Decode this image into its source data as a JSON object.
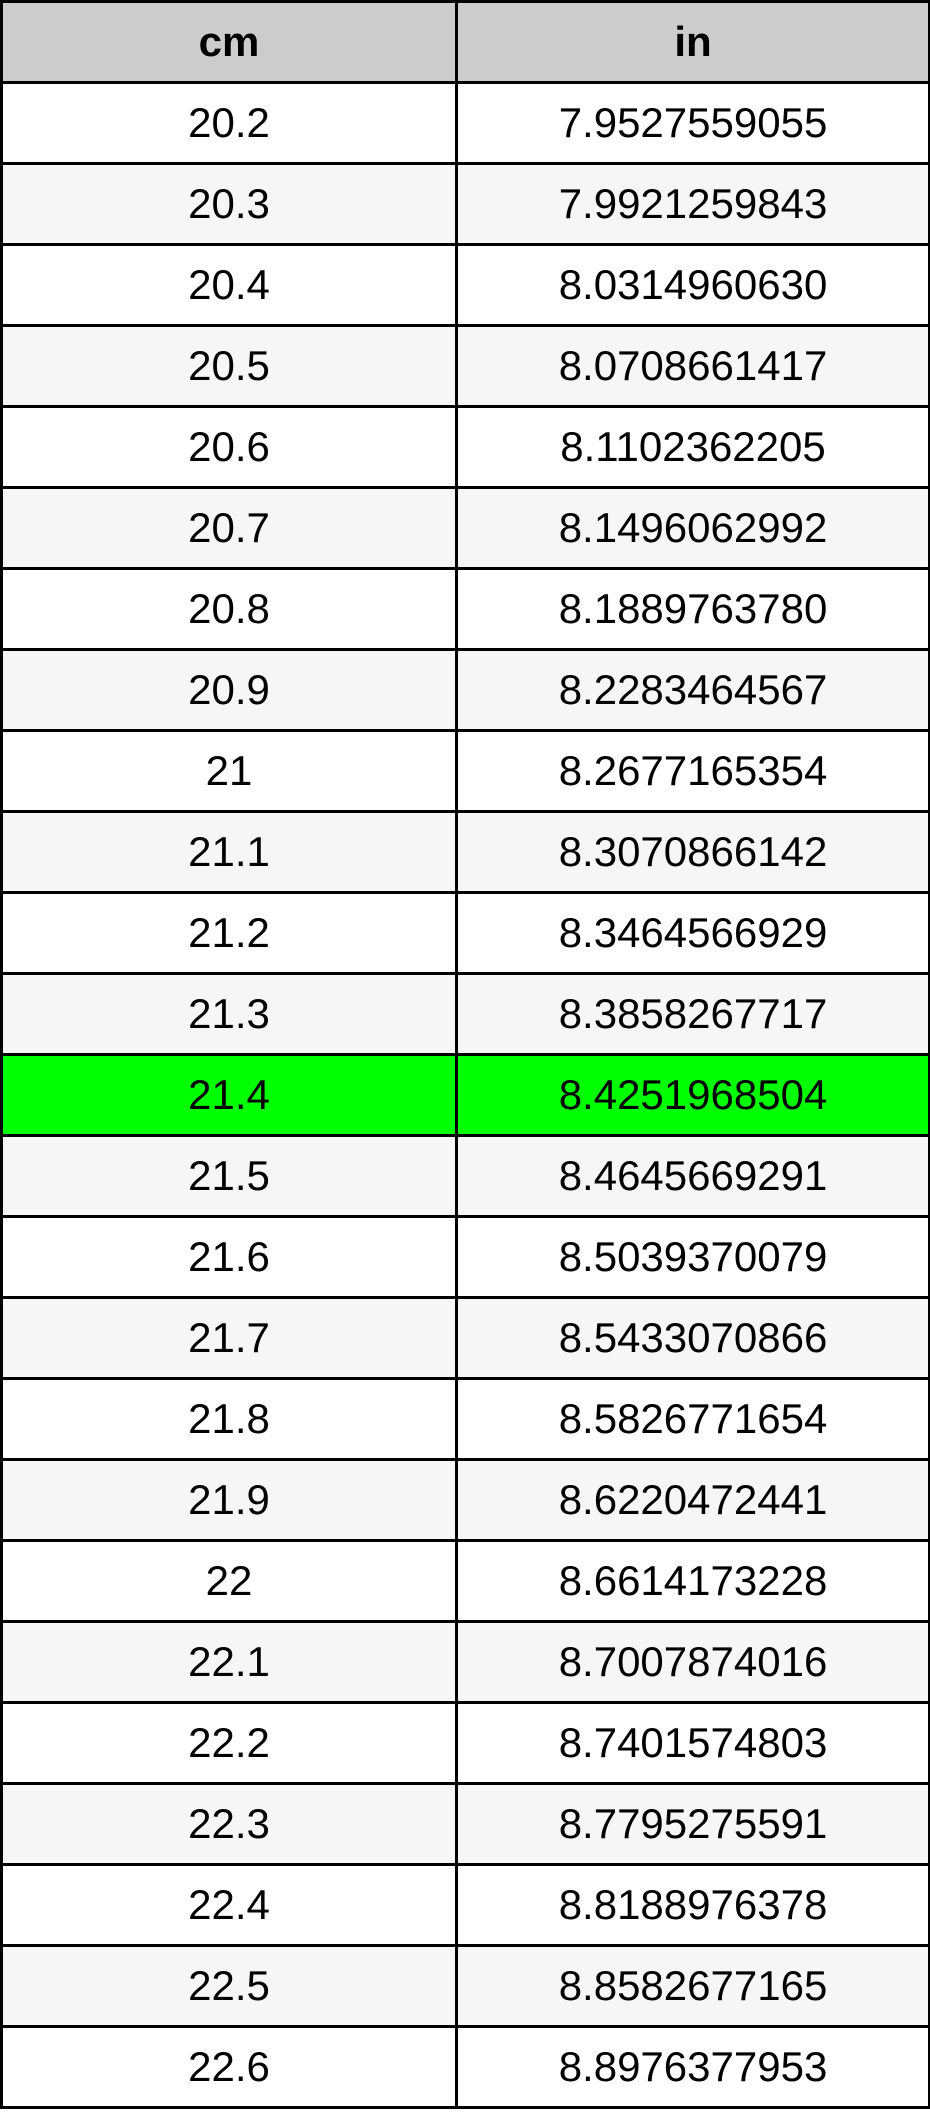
{
  "page": {
    "description": "Centimeters to inches conversion table with row 21.4 cm highlighted"
  },
  "colors": {
    "header_bg": "#cccccc",
    "alt_row_bg": "#f6f6f6",
    "highlight_bg": "#00ff00",
    "border": "#000000",
    "text": "#000000"
  },
  "chart_data": {
    "type": "table",
    "columns": [
      "cm",
      "in"
    ],
    "rows": [
      [
        "20.2",
        "7.9527559055"
      ],
      [
        "20.3",
        "7.9921259843"
      ],
      [
        "20.4",
        "8.0314960630"
      ],
      [
        "20.5",
        "8.0708661417"
      ],
      [
        "20.6",
        "8.1102362205"
      ],
      [
        "20.7",
        "8.1496062992"
      ],
      [
        "20.8",
        "8.1889763780"
      ],
      [
        "20.9",
        "8.2283464567"
      ],
      [
        "21",
        "8.2677165354"
      ],
      [
        "21.1",
        "8.3070866142"
      ],
      [
        "21.2",
        "8.3464566929"
      ],
      [
        "21.3",
        "8.3858267717"
      ],
      [
        "21.4",
        "8.4251968504"
      ],
      [
        "21.5",
        "8.4645669291"
      ],
      [
        "21.6",
        "8.5039370079"
      ],
      [
        "21.7",
        "8.5433070866"
      ],
      [
        "21.8",
        "8.5826771654"
      ],
      [
        "21.9",
        "8.6220472441"
      ],
      [
        "22",
        "8.6614173228"
      ],
      [
        "22.1",
        "8.7007874016"
      ],
      [
        "22.2",
        "8.7401574803"
      ],
      [
        "22.3",
        "8.7795275591"
      ],
      [
        "22.4",
        "8.8188976378"
      ],
      [
        "22.5",
        "8.8582677165"
      ],
      [
        "22.6",
        "8.8976377953"
      ]
    ],
    "highlighted_row_index": 12,
    "highlighted_row": {
      "cm": "21.4",
      "in": "8.4251968504"
    },
    "title": "",
    "layout": {
      "grid": true,
      "zebra_striping": true,
      "header_row": true
    }
  }
}
